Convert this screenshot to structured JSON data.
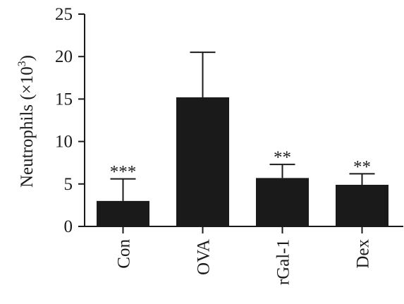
{
  "chart_data": {
    "type": "bar",
    "categories": [
      "Con",
      "OVA",
      "rGal-1",
      "Dex"
    ],
    "values": [
      3.0,
      15.2,
      5.7,
      4.9
    ],
    "error_upper": [
      5.6,
      20.5,
      7.3,
      6.2
    ],
    "significance": [
      "***",
      "",
      "**",
      "**"
    ],
    "ylabel_prefix": "Neutrophils (×10",
    "ylabel_sup": "3",
    "ylabel_suffix": ")",
    "xlabel": "",
    "ylim": [
      0,
      25
    ],
    "yticks": [
      "0",
      "5",
      "10",
      "15",
      "20",
      "25"
    ],
    "grid": false,
    "bar_color": "#1a1a1a"
  }
}
